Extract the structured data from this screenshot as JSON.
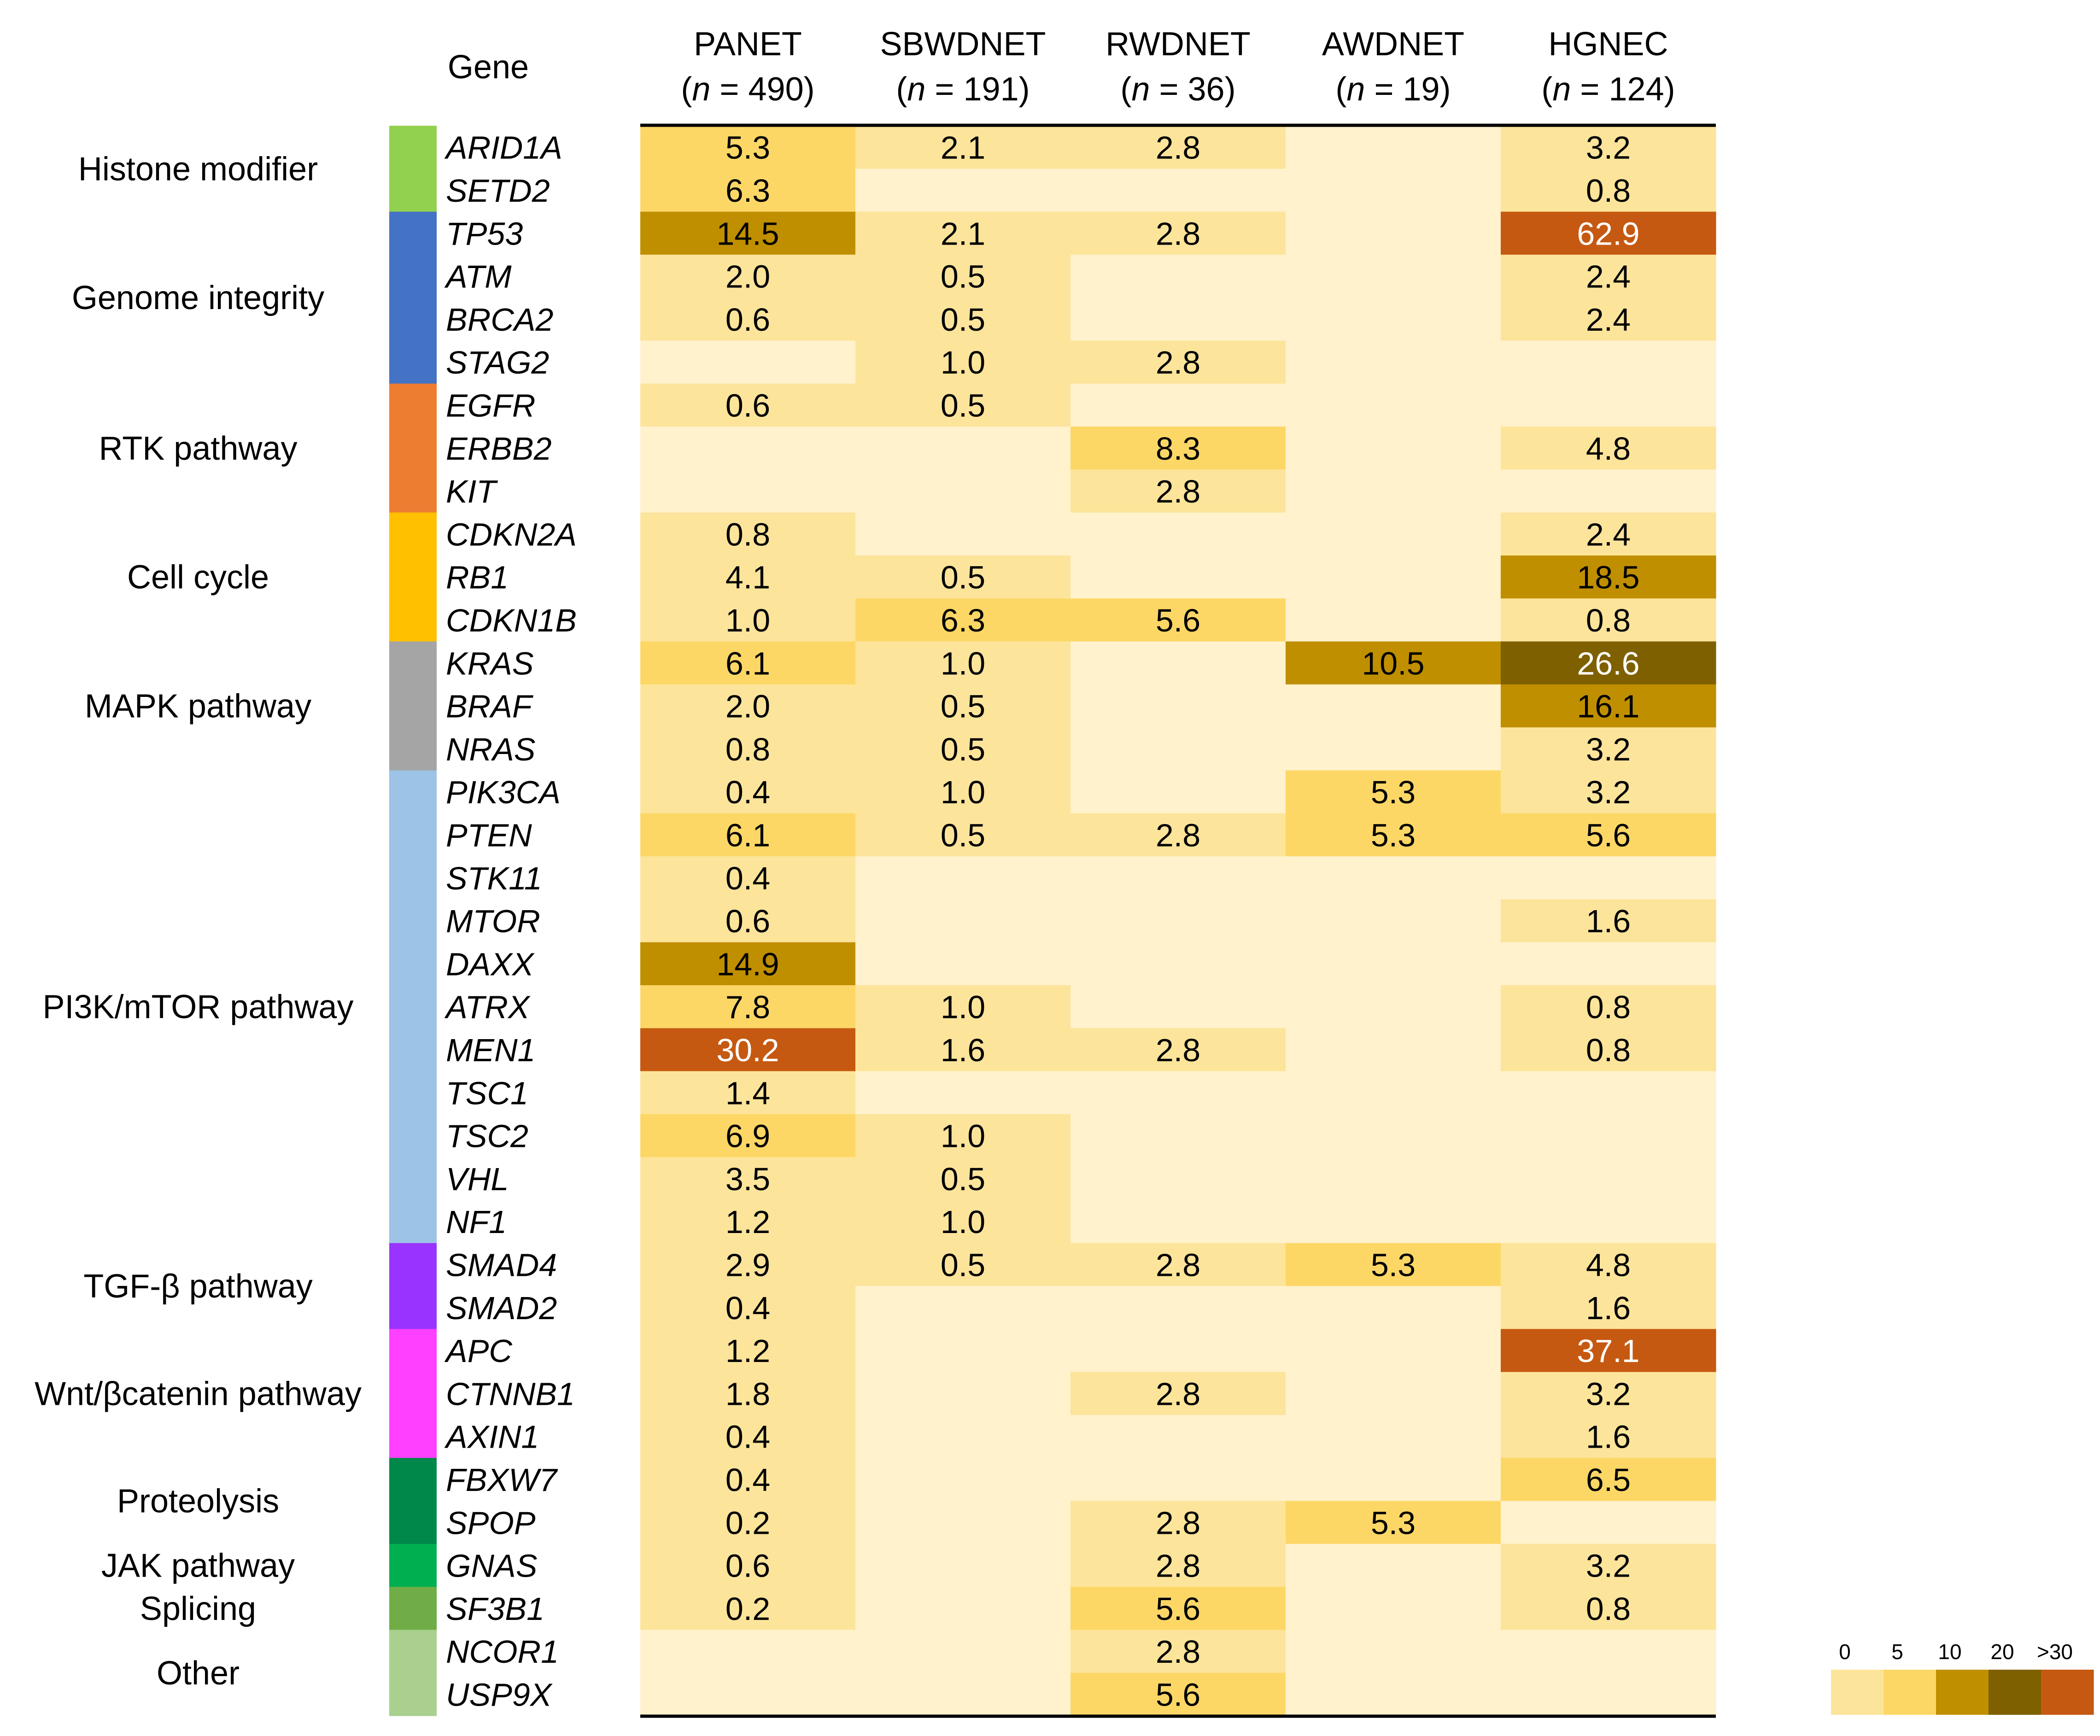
{
  "chart_data": {
    "type": "heatmap",
    "gene_header": "Gene",
    "columns": [
      {
        "name": "PANET",
        "n_label": "n",
        "n_value": "= 490)"
      },
      {
        "name": "SBWDNET",
        "n_label": "n",
        "n_value": "= 191)"
      },
      {
        "name": "RWDNET",
        "n_label": "n",
        "n_value": "= 36)"
      },
      {
        "name": "AWDNET",
        "n_label": "n",
        "n_value": "= 19)"
      },
      {
        "name": "HGNEC",
        "n_label": "n",
        "n_value": "= 124)"
      }
    ],
    "categories": [
      {
        "label": "Histone modifier",
        "color": "#92d050",
        "genes": 2
      },
      {
        "label": "Genome integrity",
        "color": "#4472c4",
        "genes": 4
      },
      {
        "label": "RTK pathway",
        "color": "#ed7d31",
        "genes": 3
      },
      {
        "label": "Cell cycle",
        "color": "#ffc000",
        "genes": 3
      },
      {
        "label": "MAPK pathway",
        "color": "#a5a5a5",
        "genes": 3
      },
      {
        "label": "PI3K/mTOR pathway",
        "color": "#9dc3e6",
        "genes": 11
      },
      {
        "label": "TGF-β pathway",
        "color": "#9933ff",
        "genes": 2
      },
      {
        "label": "Wnt/βcatenin pathway",
        "color": "#ff40ff",
        "genes": 3
      },
      {
        "label": "Proteolysis",
        "color": "#00874a",
        "genes": 2
      },
      {
        "label": "JAK pathway",
        "color": "#00b050",
        "genes": 1
      },
      {
        "label": "Splicing",
        "color": "#70ad47",
        "genes": 1
      },
      {
        "label": "Other",
        "color": "#a9d08e",
        "genes": 2
      }
    ],
    "rows": [
      {
        "gene": "ARID1A",
        "values": [
          5.3,
          2.1,
          2.8,
          null,
          3.2
        ]
      },
      {
        "gene": "SETD2",
        "values": [
          6.3,
          null,
          null,
          null,
          0.8
        ]
      },
      {
        "gene": "TP53",
        "values": [
          14.5,
          2.1,
          2.8,
          null,
          62.9
        ]
      },
      {
        "gene": "ATM",
        "values": [
          2.0,
          0.5,
          null,
          null,
          2.4
        ]
      },
      {
        "gene": "BRCA2",
        "values": [
          0.6,
          0.5,
          null,
          null,
          2.4
        ]
      },
      {
        "gene": "STAG2",
        "values": [
          null,
          1.0,
          2.8,
          null,
          null
        ]
      },
      {
        "gene": "EGFR",
        "values": [
          0.6,
          0.5,
          null,
          null,
          null
        ]
      },
      {
        "gene": "ERBB2",
        "values": [
          null,
          null,
          8.3,
          null,
          4.8
        ]
      },
      {
        "gene": "KIT",
        "values": [
          null,
          null,
          2.8,
          null,
          null
        ]
      },
      {
        "gene": "CDKN2A",
        "values": [
          0.8,
          null,
          null,
          null,
          2.4
        ]
      },
      {
        "gene": "RB1",
        "values": [
          4.1,
          0.5,
          null,
          null,
          18.5
        ]
      },
      {
        "gene": "CDKN1B",
        "values": [
          1.0,
          6.3,
          5.6,
          null,
          0.8
        ]
      },
      {
        "gene": "KRAS",
        "values": [
          6.1,
          1.0,
          null,
          10.5,
          26.6
        ]
      },
      {
        "gene": "BRAF",
        "values": [
          2.0,
          0.5,
          null,
          null,
          16.1
        ]
      },
      {
        "gene": "NRAS",
        "values": [
          0.8,
          0.5,
          null,
          null,
          3.2
        ]
      },
      {
        "gene": "PIK3CA",
        "values": [
          0.4,
          1.0,
          null,
          5.3,
          3.2
        ]
      },
      {
        "gene": "PTEN",
        "values": [
          6.1,
          0.5,
          2.8,
          5.3,
          5.6
        ]
      },
      {
        "gene": "STK11",
        "values": [
          0.4,
          null,
          null,
          null,
          null
        ]
      },
      {
        "gene": "MTOR",
        "values": [
          0.6,
          null,
          null,
          null,
          1.6
        ]
      },
      {
        "gene": "DAXX",
        "values": [
          14.9,
          null,
          null,
          null,
          null
        ]
      },
      {
        "gene": "ATRX",
        "values": [
          7.8,
          1.0,
          null,
          null,
          0.8
        ]
      },
      {
        "gene": "MEN1",
        "values": [
          30.2,
          1.6,
          2.8,
          null,
          0.8
        ]
      },
      {
        "gene": "TSC1",
        "values": [
          1.4,
          null,
          null,
          null,
          null
        ]
      },
      {
        "gene": "TSC2",
        "values": [
          6.9,
          1.0,
          null,
          null,
          null
        ]
      },
      {
        "gene": "VHL",
        "values": [
          3.5,
          0.5,
          null,
          null,
          null
        ]
      },
      {
        "gene": "NF1",
        "values": [
          1.2,
          1.0,
          null,
          null,
          null
        ]
      },
      {
        "gene": "SMAD4",
        "values": [
          2.9,
          0.5,
          2.8,
          5.3,
          4.8
        ]
      },
      {
        "gene": "SMAD2",
        "values": [
          0.4,
          null,
          null,
          null,
          1.6
        ]
      },
      {
        "gene": "APC",
        "values": [
          1.2,
          null,
          null,
          null,
          37.1
        ]
      },
      {
        "gene": "CTNNB1",
        "values": [
          1.8,
          null,
          2.8,
          null,
          3.2
        ]
      },
      {
        "gene": "AXIN1",
        "values": [
          0.4,
          null,
          null,
          null,
          1.6
        ]
      },
      {
        "gene": "FBXW7",
        "values": [
          0.4,
          null,
          null,
          null,
          6.5
        ]
      },
      {
        "gene": "SPOP",
        "values": [
          0.2,
          null,
          2.8,
          5.3,
          null
        ]
      },
      {
        "gene": "GNAS",
        "values": [
          0.6,
          null,
          2.8,
          null,
          3.2
        ]
      },
      {
        "gene": "SF3B1",
        "values": [
          0.2,
          null,
          5.6,
          null,
          0.8
        ]
      },
      {
        "gene": "NCOR1",
        "values": [
          null,
          null,
          2.8,
          null,
          null
        ]
      },
      {
        "gene": "USP9X",
        "values": [
          null,
          null,
          5.6,
          null,
          null
        ]
      }
    ],
    "legend": {
      "labels": [
        "0",
        "5",
        "10",
        "20",
        ">30"
      ],
      "thresholds": [
        0,
        5,
        10,
        20,
        30
      ],
      "colors": [
        "#fde49b",
        "#fdd766",
        "#bf8f00",
        "#7f6000",
        "#c65911"
      ]
    },
    "empty_color": "#fff2cc",
    "text_colors": {
      "dark": "#000000",
      "light": "#ffffff"
    }
  }
}
